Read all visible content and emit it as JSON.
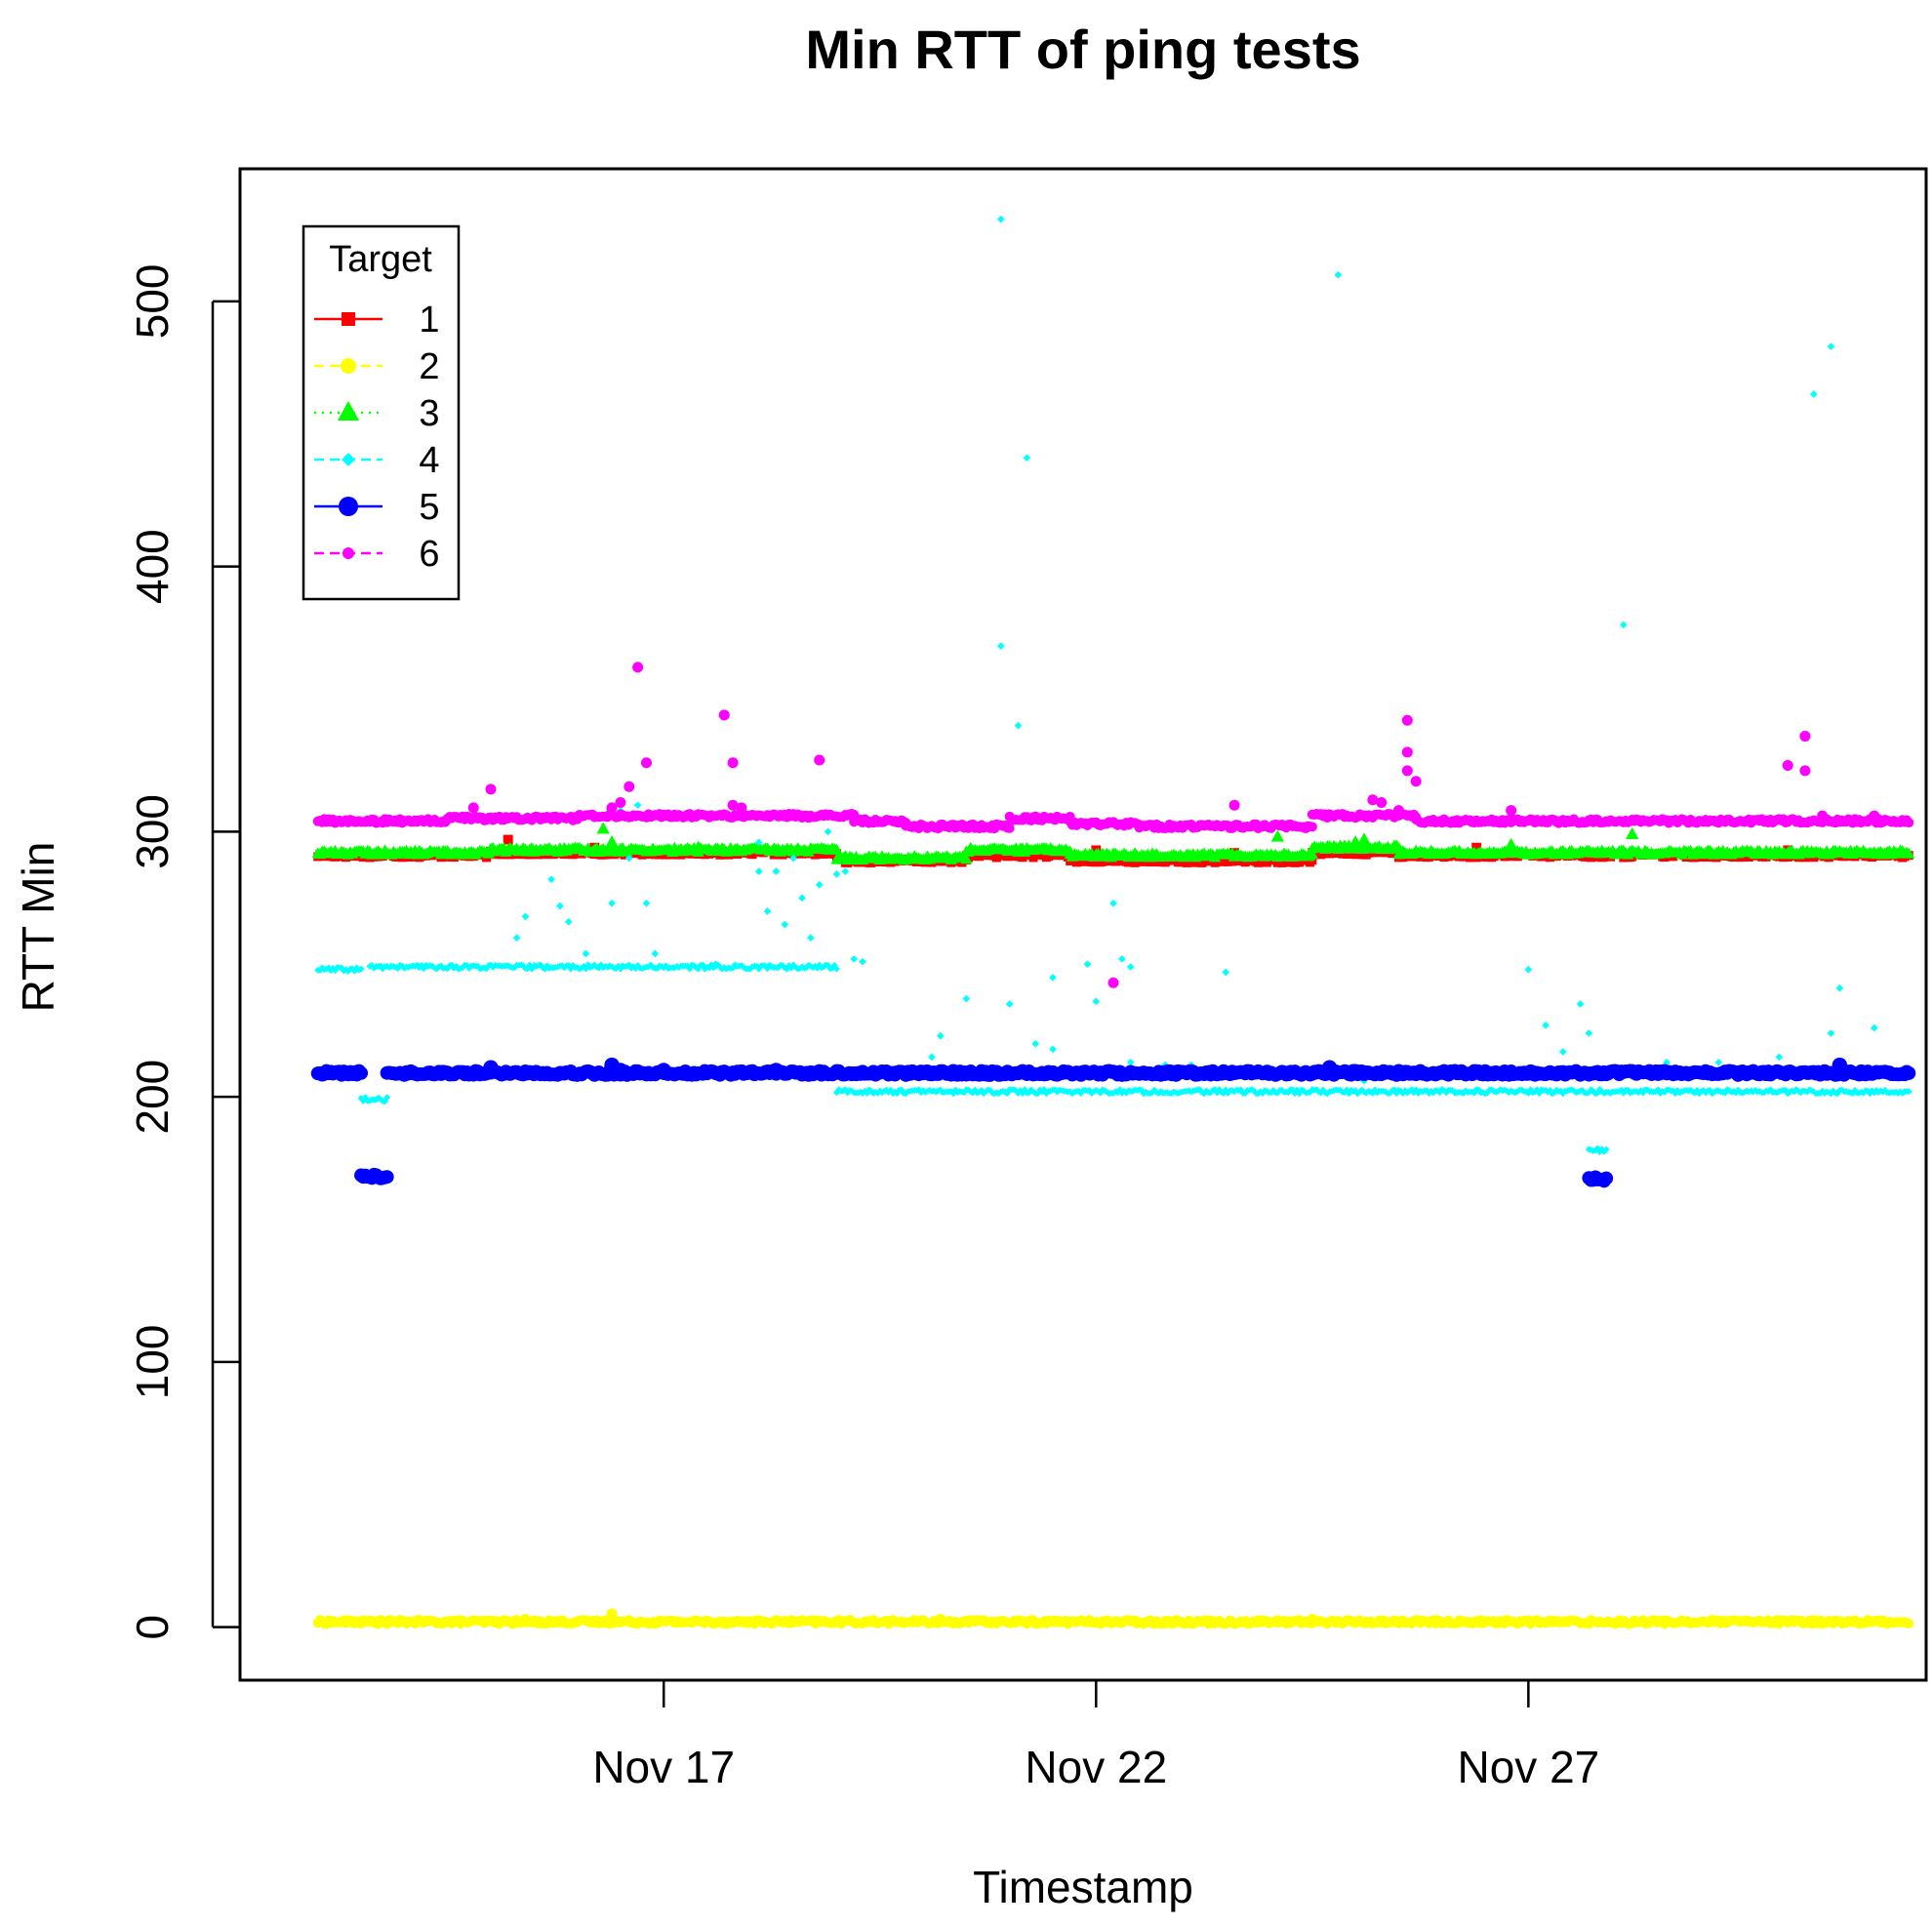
{
  "chart_data": {
    "type": "scatter",
    "title": "Min RTT of ping tests",
    "xlabel": "Timestamp",
    "ylabel": "RTT Min",
    "x_ticks": [
      "Nov 17",
      "Nov 22",
      "Nov 27"
    ],
    "x_tick_values": [
      17,
      22,
      27
    ],
    "xlim": [
      12.1,
      31.6
    ],
    "y_ticks": [
      "0",
      "100",
      "200",
      "300",
      "400",
      "500"
    ],
    "y_tick_values": [
      0,
      100,
      200,
      300,
      400,
      500
    ],
    "ylim": [
      -20,
      550
    ],
    "grid": false,
    "legend": {
      "title": "Target",
      "position": "top-left"
    },
    "series": [
      {
        "name": "1",
        "color": "#FF0000",
        "marker": "square",
        "segments": [
          [
            13.0,
            15.0,
            291
          ],
          [
            15.0,
            19.0,
            292
          ],
          [
            19.0,
            20.5,
            289
          ],
          [
            20.5,
            21.7,
            291
          ],
          [
            21.7,
            24.5,
            289
          ],
          [
            24.5,
            25.5,
            292
          ],
          [
            25.5,
            31.4,
            291
          ]
        ],
        "outliers": [
          [
            15.2,
            297
          ],
          [
            16.2,
            294
          ],
          [
            22.0,
            293
          ],
          [
            23.6,
            292
          ],
          [
            24.7,
            292
          ],
          [
            25.0,
            294
          ],
          [
            26.4,
            294
          ],
          [
            30.0,
            293
          ]
        ]
      },
      {
        "name": "2",
        "color": "#FFFF00",
        "marker": "circle",
        "segments": [
          [
            13.0,
            31.4,
            2
          ]
        ],
        "outliers": [
          [
            16.4,
            5
          ],
          [
            15.4,
            3
          ],
          [
            20.2,
            3
          ],
          [
            24.5,
            3
          ]
        ]
      },
      {
        "name": "3",
        "color": "#00FF00",
        "marker": "triangle",
        "segments": [
          [
            13.0,
            15.0,
            292
          ],
          [
            15.0,
            19.0,
            293
          ],
          [
            19.0,
            20.5,
            290
          ],
          [
            20.5,
            21.7,
            293
          ],
          [
            21.7,
            24.5,
            291
          ],
          [
            24.5,
            25.5,
            294
          ],
          [
            25.5,
            31.4,
            292
          ]
        ],
        "outliers": [
          [
            16.3,
            301
          ],
          [
            16.4,
            296
          ],
          [
            17.4,
            294
          ],
          [
            24.1,
            298
          ],
          [
            25.0,
            296
          ],
          [
            25.1,
            297
          ],
          [
            26.8,
            295
          ],
          [
            28.2,
            299
          ]
        ]
      },
      {
        "name": "4",
        "color": "#00FFFF",
        "marker": "diamond",
        "segments": [
          [
            13.0,
            13.5,
            248
          ],
          [
            13.6,
            19.0,
            249
          ],
          [
            13.5,
            13.8,
            199
          ],
          [
            19.0,
            31.4,
            202
          ],
          [
            27.7,
            27.9,
            180
          ]
        ],
        "outliers": [
          [
            15.3,
            260
          ],
          [
            15.4,
            268
          ],
          [
            15.7,
            282
          ],
          [
            15.8,
            272
          ],
          [
            15.9,
            266
          ],
          [
            16.1,
            254
          ],
          [
            16.4,
            273
          ],
          [
            16.5,
            308
          ],
          [
            16.6,
            290
          ],
          [
            16.7,
            310
          ],
          [
            16.8,
            273
          ],
          [
            16.9,
            254
          ],
          [
            17.6,
            250
          ],
          [
            18.1,
            296
          ],
          [
            18.1,
            285
          ],
          [
            18.2,
            270
          ],
          [
            18.3,
            285
          ],
          [
            18.4,
            265
          ],
          [
            18.5,
            290
          ],
          [
            18.6,
            275
          ],
          [
            18.7,
            260
          ],
          [
            18.8,
            280
          ],
          [
            18.9,
            300
          ],
          [
            19.0,
            284
          ],
          [
            19.1,
            285
          ],
          [
            19.2,
            252
          ],
          [
            19.3,
            251
          ],
          [
            20.1,
            215
          ],
          [
            20.2,
            223
          ],
          [
            20.5,
            237
          ],
          [
            20.9,
            370
          ],
          [
            20.9,
            531
          ],
          [
            21.0,
            235
          ],
          [
            21.1,
            340
          ],
          [
            21.2,
            441
          ],
          [
            21.3,
            220
          ],
          [
            21.5,
            245
          ],
          [
            21.5,
            218
          ],
          [
            21.9,
            250
          ],
          [
            22.0,
            236
          ],
          [
            22.2,
            273
          ],
          [
            22.3,
            252
          ],
          [
            22.4,
            249
          ],
          [
            22.4,
            213
          ],
          [
            22.8,
            212
          ],
          [
            23.1,
            212
          ],
          [
            23.5,
            247
          ],
          [
            24.0,
            211
          ],
          [
            24.8,
            510
          ],
          [
            25.1,
            206
          ],
          [
            27.0,
            248
          ],
          [
            27.2,
            227
          ],
          [
            27.4,
            217
          ],
          [
            27.6,
            235
          ],
          [
            27.7,
            224
          ],
          [
            28.1,
            378
          ],
          [
            28.6,
            213
          ],
          [
            29.2,
            213
          ],
          [
            29.9,
            215
          ],
          [
            30.3,
            465
          ],
          [
            30.5,
            483
          ],
          [
            30.5,
            224
          ],
          [
            30.6,
            241
          ],
          [
            31.0,
            226
          ]
        ]
      },
      {
        "name": "5",
        "color": "#0000FF",
        "marker": "circle",
        "segments": [
          [
            13.0,
            13.5,
            209
          ],
          [
            13.8,
            31.4,
            209
          ],
          [
            13.5,
            13.8,
            170
          ],
          [
            27.7,
            27.9,
            169
          ]
        ],
        "outliers": [
          [
            15.0,
            211
          ],
          [
            16.4,
            212
          ],
          [
            16.5,
            210
          ],
          [
            17.0,
            210
          ],
          [
            18.3,
            210
          ],
          [
            24.7,
            211
          ],
          [
            30.6,
            212
          ]
        ]
      },
      {
        "name": "6",
        "color": "#FF00FF",
        "marker": "circle",
        "segments": [
          [
            13.0,
            14.5,
            304
          ],
          [
            14.5,
            16.0,
            305
          ],
          [
            16.0,
            19.2,
            306
          ],
          [
            19.2,
            19.8,
            304
          ],
          [
            19.8,
            21.0,
            302
          ],
          [
            21.0,
            21.7,
            305
          ],
          [
            21.7,
            22.5,
            303
          ],
          [
            22.5,
            24.5,
            302
          ],
          [
            24.5,
            25.7,
            306
          ],
          [
            25.7,
            31.4,
            304
          ]
        ],
        "outliers": [
          [
            14.8,
            309
          ],
          [
            15.0,
            316
          ],
          [
            16.4,
            309
          ],
          [
            16.6,
            317
          ],
          [
            16.7,
            362
          ],
          [
            16.8,
            326
          ],
          [
            16.5,
            311
          ],
          [
            17.7,
            344
          ],
          [
            17.8,
            326
          ],
          [
            17.8,
            310
          ],
          [
            17.9,
            309
          ],
          [
            18.8,
            327
          ],
          [
            22.2,
            243
          ],
          [
            23.6,
            310
          ],
          [
            25.2,
            312
          ],
          [
            25.3,
            311
          ],
          [
            25.6,
            342
          ],
          [
            25.6,
            330
          ],
          [
            25.7,
            319
          ],
          [
            25.6,
            323
          ],
          [
            25.5,
            308
          ],
          [
            26.8,
            308
          ],
          [
            30.0,
            325
          ],
          [
            30.2,
            323
          ],
          [
            30.2,
            336
          ],
          [
            30.4,
            306
          ],
          [
            31.0,
            306
          ]
        ]
      }
    ]
  }
}
